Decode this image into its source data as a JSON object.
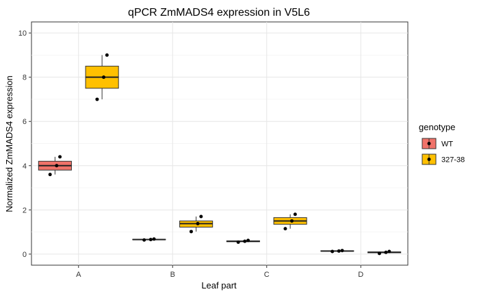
{
  "chart_data": {
    "type": "boxplot",
    "title": "qPCR ZmMADS4 expression in V5L6",
    "xlabel": "Leaf part",
    "ylabel": "Normalized ZmMADS4 expression",
    "ylim": [
      -0.5,
      10.5
    ],
    "yticks": [
      0,
      2,
      4,
      6,
      8,
      10
    ],
    "categories": [
      "A",
      "B",
      "C",
      "D"
    ],
    "grid": true,
    "legend": {
      "title": "genotype",
      "position": "right",
      "items": [
        {
          "label": "WT",
          "color": "#F0736A"
        },
        {
          "label": "327-38",
          "color": "#FFC000"
        }
      ]
    },
    "series": [
      {
        "name": "WT",
        "color": "#F0736A",
        "boxes": [
          {
            "category": "A",
            "min": 3.6,
            "q1": 3.8,
            "median": 4.0,
            "q3": 4.2,
            "max": 4.4,
            "points": [
              3.6,
              4.0,
              4.4
            ]
          },
          {
            "category": "B",
            "min": 0.64,
            "q1": 0.65,
            "median": 0.66,
            "q3": 0.67,
            "max": 0.68,
            "points": [
              0.64,
              0.66,
              0.68
            ]
          },
          {
            "category": "C",
            "min": 0.54,
            "q1": 0.56,
            "median": 0.58,
            "q3": 0.6,
            "max": 0.62,
            "points": [
              0.54,
              0.58,
              0.62
            ]
          },
          {
            "category": "D",
            "min": 0.12,
            "q1": 0.13,
            "median": 0.14,
            "q3": 0.15,
            "max": 0.16,
            "points": [
              0.12,
              0.14,
              0.16
            ]
          }
        ]
      },
      {
        "name": "327-38",
        "color": "#FFC000",
        "boxes": [
          {
            "category": "A",
            "min": 7.0,
            "q1": 7.5,
            "median": 8.0,
            "q3": 8.5,
            "max": 9.0,
            "points": [
              7.0,
              8.0,
              9.0
            ]
          },
          {
            "category": "B",
            "min": 1.02,
            "q1": 1.22,
            "median": 1.38,
            "q3": 1.5,
            "max": 1.7,
            "points": [
              1.02,
              1.38,
              1.7
            ]
          },
          {
            "category": "C",
            "min": 1.15,
            "q1": 1.35,
            "median": 1.5,
            "q3": 1.65,
            "max": 1.8,
            "points": [
              1.15,
              1.5,
              1.8
            ]
          },
          {
            "category": "D",
            "min": 0.03,
            "q1": 0.06,
            "median": 0.08,
            "q3": 0.1,
            "max": 0.12,
            "points": [
              0.03,
              0.08,
              0.12
            ]
          }
        ]
      }
    ]
  }
}
